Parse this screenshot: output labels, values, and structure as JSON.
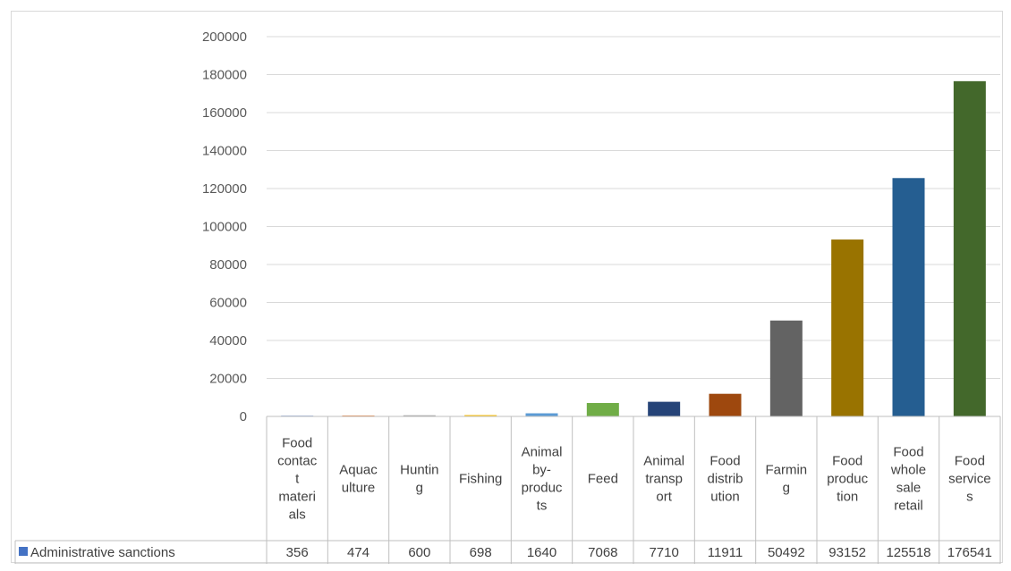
{
  "chart_data": {
    "type": "bar",
    "categories": [
      "Food contact materials",
      "Aquaculture",
      "Hunting",
      "Fishing",
      "Animal by-products",
      "Feed",
      "Animal transport",
      "Food distribution",
      "Farming",
      "Food production",
      "Food whole sale retail",
      "Food services"
    ],
    "category_lines": [
      [
        "Food",
        "contac",
        "t",
        "materi",
        "als"
      ],
      [
        "Aquac",
        "ulture"
      ],
      [
        "Huntin",
        "g"
      ],
      [
        "Fishing"
      ],
      [
        "Animal",
        "by-",
        "produc",
        "ts"
      ],
      [
        "Feed"
      ],
      [
        "Animal",
        "transp",
        "ort"
      ],
      [
        "Food",
        "distrib",
        "ution"
      ],
      [
        "Farmin",
        "g"
      ],
      [
        "Food",
        "produc",
        "tion"
      ],
      [
        "Food",
        "whole",
        "sale",
        "retail"
      ],
      [
        "Food",
        "service",
        "s"
      ]
    ],
    "series": [
      {
        "name": "Administrative sanctions",
        "values": [
          356,
          474,
          600,
          698,
          1640,
          7068,
          7710,
          11911,
          50492,
          93152,
          125518,
          176541
        ]
      }
    ],
    "colors": [
      "#4472c4",
      "#ed7d31",
      "#a5a5a5",
      "#ffc000",
      "#5b9bd5",
      "#70ad47",
      "#264478",
      "#9e480e",
      "#636363",
      "#997300",
      "#255e91",
      "#43682b"
    ],
    "legend_color": "#4472c4",
    "ylim": [
      0,
      200000
    ],
    "yticks": [
      0,
      20000,
      40000,
      60000,
      80000,
      100000,
      120000,
      140000,
      160000,
      180000,
      200000
    ],
    "grid": true,
    "legend_placement": "data-table-row",
    "title": "",
    "xlabel": "",
    "ylabel": ""
  }
}
